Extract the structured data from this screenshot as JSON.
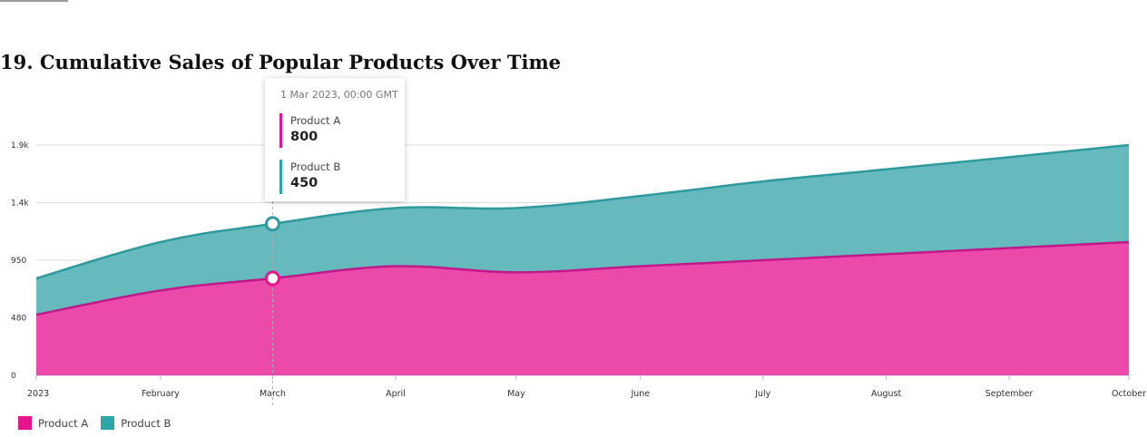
{
  "title": "19. Cumulative Sales of Popular Products Over Time",
  "tooltip": {
    "date": "1 Mar 2023, 00:00 GMT",
    "items": [
      {
        "name": "Product A",
        "value": "800"
      },
      {
        "name": "Product B",
        "value": "450"
      }
    ]
  },
  "legend": [
    {
      "name": "Product A"
    },
    {
      "name": "Product B"
    }
  ],
  "colors": {
    "product_a_fill": "#eb4aaa",
    "product_a_line": "#c2198a",
    "product_a_swatch": "#e6158c",
    "product_b_fill": "#66babe",
    "product_b_line": "#2e9a9d",
    "product_b_swatch": "#2ca7a8",
    "grid": "#dddddd"
  },
  "chart_data": {
    "type": "area",
    "stacked": true,
    "categories": [
      "2023",
      "February",
      "March",
      "April",
      "May",
      "June",
      "July",
      "August",
      "September",
      "October"
    ],
    "series": [
      {
        "name": "Product A",
        "values": [
          500,
          700,
          800,
          900,
          850,
          900,
          950,
          1000,
          1050,
          1100
        ]
      },
      {
        "name": "Product B",
        "values": [
          300,
          400,
          450,
          480,
          530,
          580,
          650,
          700,
          750,
          800
        ]
      }
    ],
    "y_ticks": [
      "0",
      "480",
      "950",
      "1.4k",
      "1.9k"
    ],
    "y_tick_values": [
      0,
      475,
      950,
      1425,
      1900
    ],
    "ylim": [
      0,
      1900
    ],
    "grid": true,
    "legend_position": "bottom-left",
    "highlighted_category": "March"
  }
}
